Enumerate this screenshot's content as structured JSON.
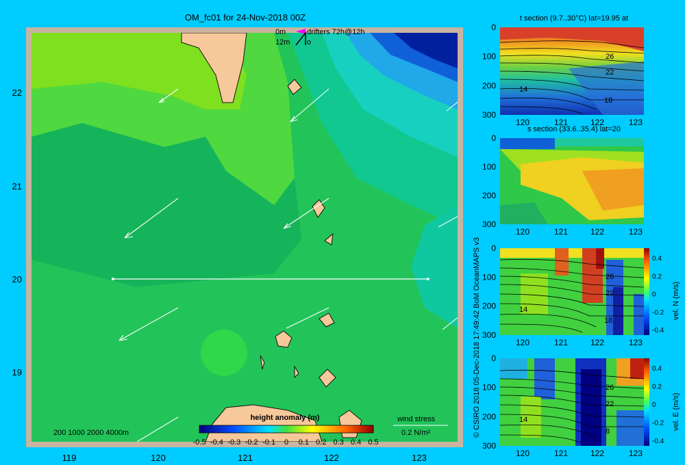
{
  "colors": {
    "background": "#00ccff",
    "frame": "#c8b4a0",
    "land": "#f7c89a",
    "sea_base": "#22c45a"
  },
  "main_map": {
    "title": "OM_fc01 for 24-Nov-2018 00Z",
    "legend_lines": [
      "0m",
      "drifters 72h@12h",
      "12m",
      "o"
    ],
    "x_ticks": [
      "119",
      "120",
      "121",
      "122",
      "123"
    ],
    "y_ticks": [
      "22",
      "21",
      "20",
      "19"
    ],
    "bathymetry_label": "200  1000  2000  4000m",
    "colorbar": {
      "title": "height anomaly  (m)",
      "tick_labels": [
        "-0.5",
        "-0.4",
        "-0.3",
        "-0.2",
        "-0.1",
        "0",
        "0.1",
        "0.2",
        "0.3",
        "0.4",
        "0.5"
      ]
    },
    "wind_stress": {
      "label": "wind stress",
      "scale_label": "0.2 N/m²"
    },
    "section_line": {
      "lat": 20,
      "lon_start": 119.5,
      "lon_end": 123.1
    }
  },
  "credit": "© CSIRO 2018  05-Dec-2018 17:49:42 BoM OceanMAPS v3",
  "sections": [
    {
      "title": "t section (9.7..30°C) lat=19.95 at",
      "y_ticks": [
        "0",
        "100",
        "200",
        "300"
      ],
      "x_ticks": [
        "120",
        "121",
        "122",
        "123"
      ],
      "contour_labels": [
        "26",
        "22",
        "14",
        "18"
      ],
      "colorbar": null
    },
    {
      "title": "s section (33.6..35.4) lat=20",
      "y_ticks": [
        "0",
        "100",
        "200",
        "300"
      ],
      "x_ticks": [
        "120",
        "121",
        "122",
        "123"
      ],
      "contour_labels": [],
      "colorbar": null
    },
    {
      "title": "",
      "y_ticks": [
        "0",
        "100",
        "200",
        "300"
      ],
      "x_ticks": [
        "120",
        "121",
        "122",
        "123"
      ],
      "contour_labels": [
        "26",
        "22",
        "14",
        "18"
      ],
      "colorbar": {
        "label": "vel. N  (m/s)",
        "ticks": [
          "0.4",
          "0.2",
          "0",
          "-0.2",
          "-0.4"
        ]
      }
    },
    {
      "title": "",
      "y_ticks": [
        "0",
        "100",
        "200",
        "300"
      ],
      "x_ticks": [
        "120",
        "121",
        "122",
        "123"
      ],
      "contour_labels": [
        "26",
        "22",
        "14",
        "8"
      ],
      "colorbar": {
        "label": "vel. E  (m/s)",
        "ticks": [
          "0.4",
          "0.2",
          "0",
          "-0.2",
          "-0.4"
        ]
      }
    }
  ]
}
